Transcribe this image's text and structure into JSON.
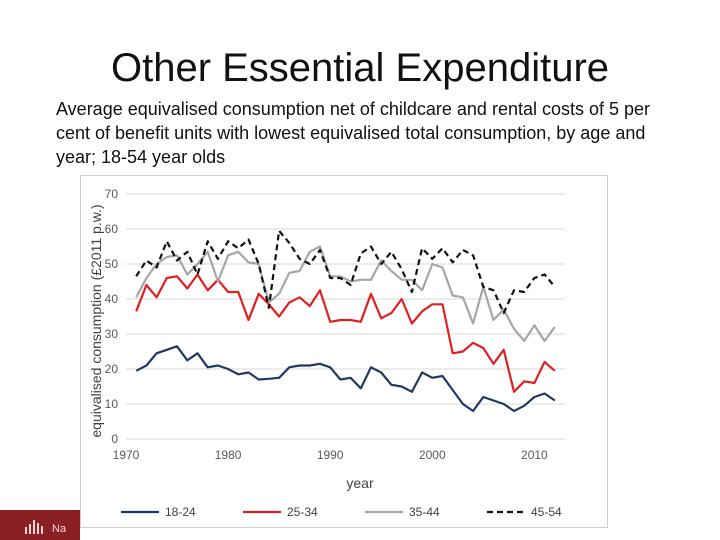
{
  "slide": {
    "title": "Other Essential Expenditure",
    "subtitle": "Average equivalised consumption net of childcare and rental costs of 5 per cent of benefit units with lowest equivalised total consumption, by age and year; 18-54 year olds"
  },
  "footer": {
    "text": "Na",
    "brand_color": "#8a1f24"
  },
  "chart_data": {
    "type": "line",
    "title": "",
    "xlabel": "year",
    "ylabel": "equivalised consumption (£2011 p.w.)",
    "xlim": [
      1970,
      2013
    ],
    "ylim": [
      0,
      70
    ],
    "x_ticks": [
      1970,
      1980,
      1990,
      2000,
      2010
    ],
    "y_ticks": [
      0,
      10,
      20,
      30,
      40,
      50,
      60,
      70
    ],
    "gridlines": true,
    "legend_position": "bottom",
    "x": [
      1971,
      1972,
      1973,
      1974,
      1975,
      1976,
      1977,
      1978,
      1979,
      1980,
      1981,
      1982,
      1983,
      1984,
      1985,
      1986,
      1987,
      1988,
      1989,
      1990,
      1991,
      1992,
      1993,
      1994,
      1995,
      1996,
      1997,
      1998,
      1999,
      2000,
      2001,
      2002,
      2003,
      2004,
      2005,
      2006,
      2007,
      2008,
      2009,
      2010,
      2011,
      2012
    ],
    "series": [
      {
        "name": "18-24",
        "color": "#1f3864",
        "dash": "solid",
        "values": [
          19.5,
          21,
          24.5,
          25.5,
          26.5,
          22.5,
          24.5,
          20.5,
          21,
          20,
          18.5,
          19,
          17,
          17.2,
          17.5,
          20.5,
          21,
          21,
          21.5,
          20.5,
          17,
          17.5,
          14.5,
          20.5,
          19,
          15.5,
          15,
          13.5,
          19,
          17.5,
          18,
          14,
          10,
          8,
          12,
          11,
          10,
          8,
          9.5,
          12,
          13,
          11
        ]
      },
      {
        "name": "25-34",
        "color": "#e02020",
        "dash": "solid",
        "values": [
          36.5,
          44,
          40.5,
          46,
          46.5,
          43,
          47,
          42.5,
          45.5,
          42,
          42,
          34,
          41.5,
          38.5,
          35,
          39,
          40.5,
          38,
          42.5,
          33.5,
          34,
          34,
          33.5,
          41.5,
          34.5,
          36,
          40,
          33,
          36.5,
          38.5,
          38.5,
          24.5,
          25,
          27.5,
          26,
          21.5,
          25.5,
          13.5,
          16.5,
          16,
          22,
          19.5
        ]
      },
      {
        "name": "35-44",
        "color": "#a6a6a6",
        "dash": "solid",
        "values": [
          40.5,
          46,
          50,
          52,
          52.5,
          47,
          50,
          53.5,
          45,
          52.5,
          53.5,
          50.5,
          50,
          39,
          41.5,
          47.5,
          48,
          53.5,
          55,
          46.5,
          46.5,
          45,
          45.5,
          45.5,
          51,
          48,
          45.5,
          45.5,
          42.5,
          50,
          49,
          41,
          40.5,
          33,
          43.5,
          34,
          37,
          31.5,
          28,
          32.5,
          28,
          32
        ]
      },
      {
        "name": "45-54",
        "color": "#111111",
        "dash": "dashed",
        "values": [
          46.5,
          51,
          49,
          56.5,
          51,
          53.5,
          47,
          56.5,
          51.5,
          56.5,
          54.5,
          57,
          50,
          37.5,
          59.5,
          56,
          51.5,
          50,
          54,
          46,
          46,
          44,
          53,
          55,
          50,
          53.5,
          48.5,
          42,
          54.5,
          51.5,
          54.5,
          50.5,
          54,
          52.5,
          43.5,
          42.5,
          36,
          42.5,
          42,
          46,
          47,
          43.5
        ]
      }
    ]
  }
}
